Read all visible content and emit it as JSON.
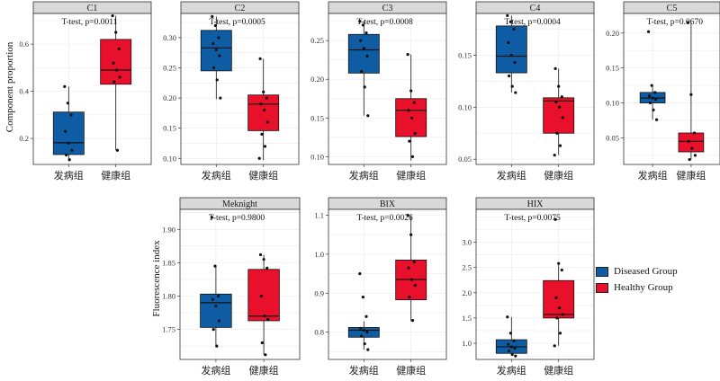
{
  "colors": {
    "diseased": "#0E5DA4",
    "healthy": "#E8102A",
    "strip": "#D9D9D9",
    "grid": "#EBEBEB",
    "frame": "#333333"
  },
  "legend": {
    "items": [
      {
        "label": "Diseased Group",
        "color": "#0E5DA4"
      },
      {
        "label": "Healthy Group",
        "color": "#E8102A"
      }
    ]
  },
  "y_titles": {
    "row1": "Component proportion",
    "row2": "Fluorescence index"
  },
  "chart_data": [
    {
      "type": "box",
      "title": "C1",
      "annotation": "T-test, p=0.0011",
      "categories": [
        "发病组",
        "健康组"
      ],
      "ylim": [
        0.09,
        0.73
      ],
      "yticks": [
        0.2,
        0.4,
        0.6
      ],
      "boxes": [
        {
          "whisker_low": 0.105,
          "q1": 0.132,
          "median": 0.182,
          "q3": 0.312,
          "whisker_high": 0.42
        },
        {
          "whisker_low": 0.15,
          "q1": 0.43,
          "median": 0.49,
          "q3": 0.62,
          "whisker_high": 0.72
        }
      ],
      "points": [
        [
          0.42,
          0.35,
          0.3,
          0.23,
          0.18,
          0.15,
          0.13,
          0.11
        ],
        [
          0.72,
          0.65,
          0.58,
          0.52,
          0.49,
          0.46,
          0.44,
          0.15
        ]
      ]
    },
    {
      "type": "box",
      "title": "C2",
      "annotation": "T-test, p=0.0005",
      "categories": [
        "发病组",
        "健康组"
      ],
      "ylim": [
        0.09,
        0.34
      ],
      "yticks": [
        0.1,
        0.15,
        0.2,
        0.25,
        0.3
      ],
      "boxes": [
        {
          "whisker_low": 0.198,
          "q1": 0.245,
          "median": 0.283,
          "q3": 0.312,
          "whisker_high": 0.335
        },
        {
          "whisker_low": 0.097,
          "q1": 0.146,
          "median": 0.19,
          "q3": 0.205,
          "whisker_high": 0.265
        }
      ],
      "points": [
        [
          0.335,
          0.32,
          0.3,
          0.29,
          0.28,
          0.27,
          0.25,
          0.23,
          0.2
        ],
        [
          0.265,
          0.21,
          0.2,
          0.19,
          0.18,
          0.16,
          0.14,
          0.12,
          0.1
        ]
      ]
    },
    {
      "type": "box",
      "title": "C3",
      "annotation": "T-test, p=0.0008",
      "categories": [
        "发病组",
        "健康组"
      ],
      "ylim": [
        0.09,
        0.285
      ],
      "yticks": [
        0.1,
        0.15,
        0.2,
        0.25
      ],
      "boxes": [
        {
          "whisker_low": 0.153,
          "q1": 0.208,
          "median": 0.238,
          "q3": 0.258,
          "whisker_high": 0.275
        },
        {
          "whisker_low": 0.095,
          "q1": 0.126,
          "median": 0.16,
          "q3": 0.175,
          "whisker_high": 0.232
        }
      ],
      "points": [
        [
          0.275,
          0.27,
          0.26,
          0.25,
          0.24,
          0.23,
          0.21,
          0.19,
          0.153
        ],
        [
          0.232,
          0.185,
          0.17,
          0.16,
          0.15,
          0.13,
          0.12,
          0.1
        ]
      ]
    },
    {
      "type": "box",
      "title": "C4",
      "annotation": "T-test, p=0.0004",
      "categories": [
        "发病组",
        "健康组"
      ],
      "ylim": [
        0.045,
        0.19
      ],
      "yticks": [
        0.05,
        0.1,
        0.15
      ],
      "boxes": [
        {
          "whisker_low": 0.114,
          "q1": 0.133,
          "median": 0.149,
          "q3": 0.178,
          "whisker_high": 0.188
        },
        {
          "whisker_low": 0.054,
          "q1": 0.075,
          "median": 0.106,
          "q3": 0.109,
          "whisker_high": 0.137
        }
      ],
      "points": [
        [
          0.188,
          0.182,
          0.175,
          0.162,
          0.15,
          0.143,
          0.13,
          0.12,
          0.114
        ],
        [
          0.137,
          0.12,
          0.11,
          0.105,
          0.1,
          0.09,
          0.075,
          0.063,
          0.054
        ]
      ]
    },
    {
      "type": "box",
      "title": "C5",
      "annotation": "T-test, p=0.0670",
      "categories": [
        "发病组",
        "健康组"
      ],
      "ylim": [
        0.012,
        0.228
      ],
      "yticks": [
        0.05,
        0.1,
        0.15,
        0.2
      ],
      "boxes": [
        {
          "whisker_low": 0.076,
          "q1": 0.1,
          "median": 0.107,
          "q3": 0.115,
          "whisker_high": 0.125
        },
        {
          "whisker_low": 0.019,
          "q1": 0.03,
          "median": 0.045,
          "q3": 0.057,
          "whisker_high": 0.215
        }
      ],
      "points": [
        [
          0.202,
          0.125,
          0.115,
          0.11,
          0.107,
          0.105,
          0.1,
          0.09,
          0.076
        ],
        [
          0.215,
          0.112,
          0.057,
          0.045,
          0.035,
          0.025,
          0.019
        ]
      ]
    },
    {
      "type": "box",
      "title": "Meknight",
      "annotation": "T-test, p=0.9800",
      "categories": [
        "发病组",
        "健康组"
      ],
      "ylim": [
        1.705,
        1.93
      ],
      "yticks": [
        1.75,
        1.8,
        1.85,
        1.9
      ],
      "boxes": [
        {
          "whisker_low": 1.725,
          "q1": 1.753,
          "median": 1.79,
          "q3": 1.803,
          "whisker_high": 1.845
        },
        {
          "whisker_low": 1.712,
          "q1": 1.763,
          "median": 1.77,
          "q3": 1.84,
          "whisker_high": 1.862
        }
      ],
      "points": [
        [
          1.918,
          1.845,
          1.8,
          1.795,
          1.785,
          1.763,
          1.75,
          1.725
        ],
        [
          1.862,
          1.855,
          1.842,
          1.8,
          1.77,
          1.765,
          1.73,
          1.712
        ]
      ]
    },
    {
      "type": "box",
      "title": "BIX",
      "annotation": "T-test, p=0.0026",
      "categories": [
        "发病组",
        "健康组"
      ],
      "ylim": [
        0.73,
        1.115
      ],
      "yticks": [
        0.8,
        0.9,
        1.0,
        1.1
      ],
      "boxes": [
        {
          "whisker_low": 0.755,
          "q1": 0.787,
          "median": 0.805,
          "q3": 0.812,
          "whisker_high": 0.828
        },
        {
          "whisker_low": 0.828,
          "q1": 0.883,
          "median": 0.935,
          "q3": 0.985,
          "whisker_high": 1.1
        }
      ],
      "points": [
        [
          0.95,
          0.89,
          0.84,
          0.81,
          0.805,
          0.8,
          0.79,
          0.77,
          0.755
        ],
        [
          1.1,
          1.05,
          0.98,
          0.965,
          0.935,
          0.92,
          0.89,
          0.83
        ]
      ]
    },
    {
      "type": "box",
      "title": "HIX",
      "annotation": "T-test, p=0.0075",
      "categories": [
        "发病组",
        "健康组"
      ],
      "ylim": [
        0.68,
        3.65
      ],
      "yticks": [
        1.0,
        1.5,
        2.0,
        2.5,
        3.0
      ],
      "boxes": [
        {
          "whisker_low": 0.75,
          "q1": 0.8,
          "median": 0.93,
          "q3": 1.07,
          "whisker_high": 1.52
        },
        {
          "whisker_low": 0.95,
          "q1": 1.5,
          "median": 1.57,
          "q3": 2.24,
          "whisker_high": 2.58
        }
      ],
      "points": [
        [
          1.52,
          1.2,
          1.05,
          0.98,
          0.93,
          0.9,
          0.85,
          0.78,
          0.75
        ],
        [
          3.45,
          2.58,
          2.45,
          1.9,
          1.7,
          1.57,
          1.5,
          1.2,
          0.95
        ]
      ]
    }
  ]
}
